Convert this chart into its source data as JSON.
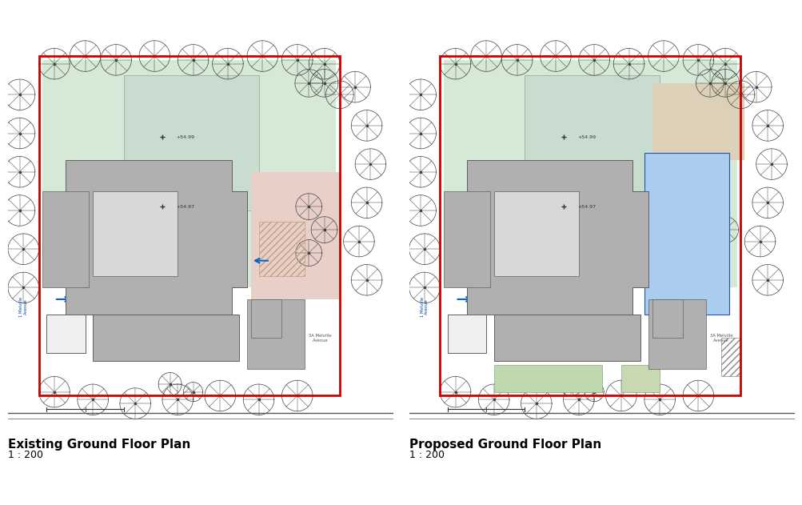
{
  "title_left": "Existing Ground Floor Plan",
  "title_right": "Proposed Ground Floor Plan",
  "subtitle": "1 : 200",
  "bg_color": "#ffffff",
  "site_border_color": "#cc0000",
  "light_green": "#d6e8d6",
  "light_sage": "#c8d8c0",
  "light_pink": "#e8d0c8",
  "light_tan": "#ddd0b8",
  "light_blue": "#aaccee",
  "gray_building": "#b0b0b0",
  "dark_gray": "#606060",
  "hatch_color": "#c0a080",
  "tree_color": "#404040",
  "arrow_color": "#0066cc",
  "text_color": "#000000",
  "fig_width": 10.04,
  "fig_height": 6.31
}
